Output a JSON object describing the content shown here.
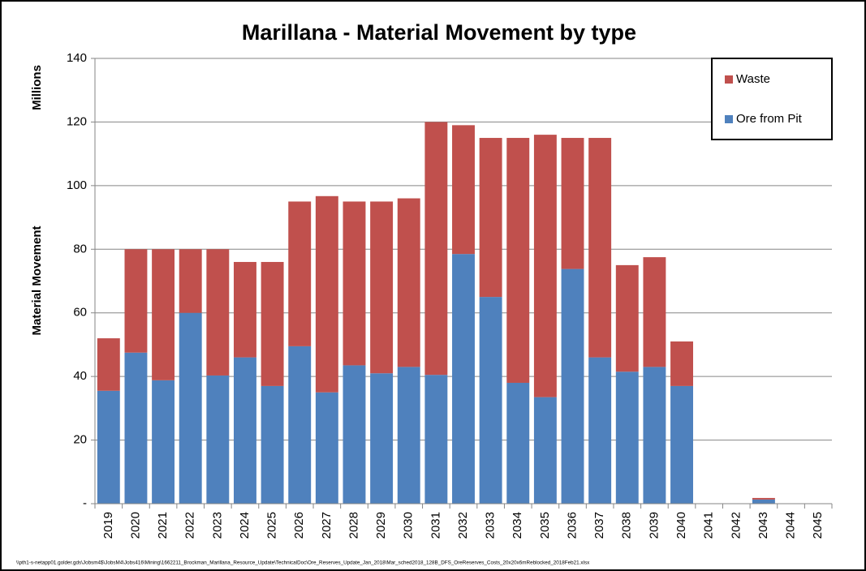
{
  "chart_data": {
    "type": "stacked_bar",
    "title": "Marillana - Material Movement by type",
    "y_axis_label": "Material Movement",
    "y_units_label": "Millions",
    "footnote": "\\\\pth1-s-netapp01.golder.gds\\Jobsm4$\\JobsM4\\Jobs416\\Mining\\1662211_Brockman_Marillana_Resource_Update\\TechnicalDoc\\Ore_Reserves_Update_Jan_2018\\Mar_sched2018_128B_DFS_OreReserves_Costs_20x20x6mReblocked_2018Feb21.xlsx",
    "categories": [
      "2019",
      "2020",
      "2021",
      "2022",
      "2023",
      "2024",
      "2025",
      "2026",
      "2027",
      "2028",
      "2029",
      "2030",
      "2031",
      "2032",
      "2033",
      "2034",
      "2035",
      "2036",
      "2037",
      "2038",
      "2039",
      "2040",
      "2041",
      "2042",
      "2043",
      "2044",
      "2045"
    ],
    "series": [
      {
        "name": "Ore from Pit",
        "color": "#4f81bd",
        "values": [
          35.5,
          47.5,
          38.8,
          60,
          40.3,
          46,
          37,
          49.5,
          35,
          43.5,
          41,
          43,
          40.5,
          78.5,
          65,
          38,
          33.5,
          73.8,
          46,
          41.5,
          43,
          37,
          0,
          0,
          1.3,
          0,
          0
        ]
      },
      {
        "name": "Waste",
        "color": "#c0504d",
        "values": [
          16.5,
          32.5,
          41.2,
          20,
          39.7,
          30,
          39,
          45.5,
          61.7,
          51.5,
          54,
          53,
          79.5,
          40.5,
          50,
          77,
          82.5,
          41.2,
          69,
          33.5,
          34.5,
          14,
          0,
          0,
          0.5,
          0,
          0
        ]
      }
    ],
    "ylim": [
      0,
      140
    ],
    "yticks": [
      {
        "value": 0,
        "label": "-"
      },
      20,
      40,
      60,
      80,
      100,
      120,
      140
    ],
    "grid": true,
    "legend": "top-right"
  }
}
